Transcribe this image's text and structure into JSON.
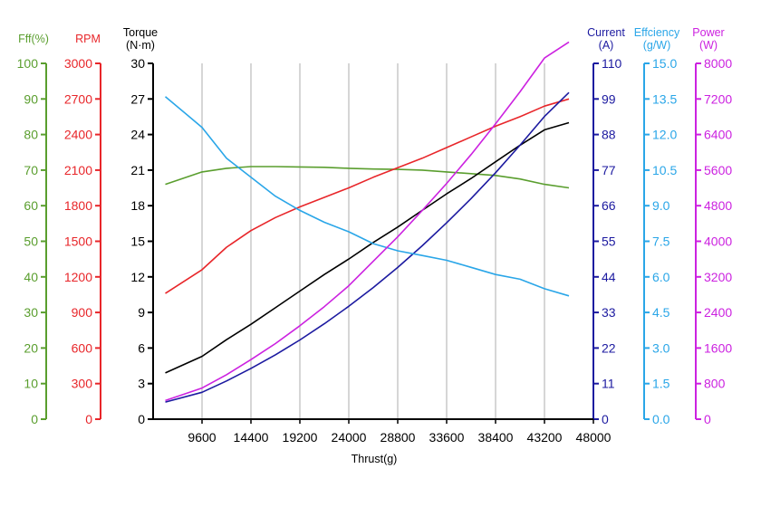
{
  "chart_data": {
    "type": "line",
    "xlabel": "Thrust(g)",
    "x_ticks": [
      "9600",
      "14400",
      "19200",
      "24000",
      "28800",
      "33600",
      "38400",
      "43200",
      "48000"
    ],
    "xlim": [
      4800,
      48000
    ],
    "grid": {
      "vertical": true,
      "horizontal": false
    },
    "x": [
      6000,
      9600,
      12000,
      14400,
      16800,
      19200,
      21600,
      24000,
      26400,
      28800,
      31200,
      33600,
      36000,
      38400,
      40800,
      43200,
      45600
    ],
    "axes": [
      {
        "id": "fff",
        "title": [
          "Fff(%)"
        ],
        "color": "#5a9e2e",
        "side": "left",
        "ticks": [
          "0",
          "10",
          "20",
          "30",
          "40",
          "50",
          "60",
          "70",
          "80",
          "90",
          "100"
        ],
        "ylim": [
          0,
          100
        ]
      },
      {
        "id": "rpm",
        "title": [
          "RPM"
        ],
        "color": "#e8262a",
        "side": "left",
        "ticks": [
          "0",
          "300",
          "600",
          "900",
          "1200",
          "1500",
          "1800",
          "2100",
          "2400",
          "2700",
          "3000"
        ],
        "ylim": [
          0,
          3000
        ]
      },
      {
        "id": "torque",
        "title": [
          "Torque",
          "(N·m)"
        ],
        "color": "#000000",
        "side": "left",
        "ticks": [
          "0",
          "3",
          "6",
          "9",
          "12",
          "15",
          "18",
          "21",
          "24",
          "27",
          "30"
        ],
        "ylim": [
          0,
          30
        ]
      },
      {
        "id": "current",
        "title": [
          "Current",
          "(A)"
        ],
        "color": "#1c1aa0",
        "side": "right",
        "ticks": [
          "0",
          "11",
          "22",
          "33",
          "44",
          "55",
          "66",
          "77",
          "88",
          "99",
          "110"
        ],
        "ylim": [
          0,
          110
        ]
      },
      {
        "id": "efficiency",
        "title": [
          "Effciency",
          "(g/W)"
        ],
        "color": "#2aa6e8",
        "side": "right",
        "ticks": [
          "0.0",
          "1.5",
          "3.0",
          "4.5",
          "6.0",
          "7.5",
          "9.0",
          "10.5",
          "12.0",
          "13.5",
          "15.0"
        ],
        "ylim": [
          0,
          15
        ]
      },
      {
        "id": "power",
        "title": [
          "Power",
          "(W)"
        ],
        "color": "#cc22e0",
        "side": "right",
        "ticks": [
          "0",
          "800",
          "1600",
          "2400",
          "3200",
          "4000",
          "4800",
          "5600",
          "6400",
          "7200",
          "8000"
        ],
        "ylim": [
          0,
          8000
        ]
      }
    ],
    "series": [
      {
        "axis": "fff",
        "color": "#5a9e2e",
        "values": [
          66,
          69.5,
          70.5,
          71,
          71,
          70.9,
          70.8,
          70.5,
          70.3,
          70.2,
          70,
          69.5,
          69,
          68.5,
          67.5,
          66,
          65
        ]
      },
      {
        "axis": "rpm",
        "color": "#e8262a",
        "values": [
          1060,
          1260,
          1450,
          1590,
          1700,
          1790,
          1870,
          1950,
          2040,
          2120,
          2200,
          2290,
          2380,
          2470,
          2550,
          2640,
          2700
        ]
      },
      {
        "axis": "torque",
        "color": "#000000",
        "values": [
          3.9,
          5.3,
          6.7,
          8.0,
          9.4,
          10.8,
          12.2,
          13.5,
          14.9,
          16.2,
          17.6,
          19.0,
          20.3,
          21.7,
          23.1,
          24.4,
          25.0
        ]
      },
      {
        "axis": "current",
        "color": "#1c1aa0",
        "values": [
          5.3,
          8.3,
          11.8,
          15.7,
          19.9,
          24.5,
          29.5,
          34.9,
          40.7,
          46.9,
          53.6,
          60.7,
          68.2,
          76.2,
          84.7,
          93.6,
          101.0
        ]
      },
      {
        "axis": "efficiency",
        "color": "#2aa6e8",
        "values": [
          13.6,
          12.3,
          11.0,
          10.2,
          9.4,
          8.8,
          8.3,
          7.9,
          7.4,
          7.1,
          6.9,
          6.7,
          6.4,
          6.1,
          5.9,
          5.5,
          5.2
        ]
      },
      {
        "axis": "power",
        "color": "#cc22e0",
        "values": [
          420,
          700,
          1000,
          1340,
          1700,
          2100,
          2530,
          3000,
          3550,
          4100,
          4690,
          5300,
          5950,
          6640,
          7360,
          8120,
          8480
        ]
      }
    ]
  }
}
